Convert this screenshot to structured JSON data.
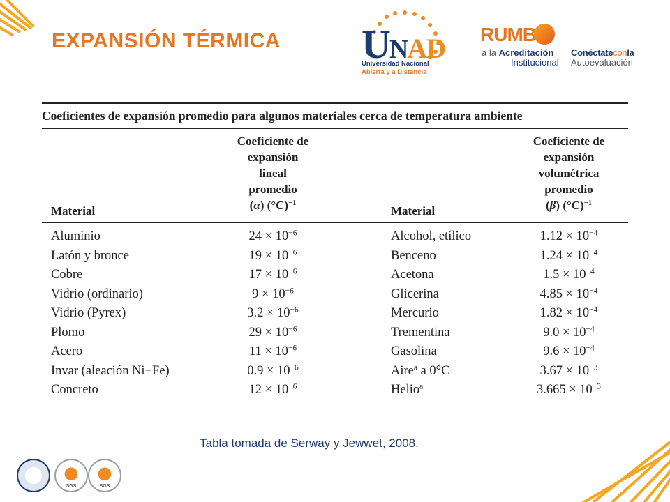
{
  "slide": {
    "title": "EXPANSIÓN TÉRMICA",
    "source_text": "Tabla tomada de Serway y Jewwet, 2008."
  },
  "logos": {
    "unad": {
      "letters_u": "U",
      "letters_n": "N",
      "letters_ad": "AD",
      "line1": "Universidad Nacional",
      "line2": "Abierta y a Distancia"
    },
    "rumbo": {
      "word": "RUMB",
      "line1_prefix": "a la ",
      "line1_bold": "Acreditación",
      "line2": "Institucional",
      "line3_a": "Conéctate",
      "line3_b": "con",
      "line3_c": "la",
      "line4": "Autoevaluación"
    },
    "badges": {
      "b2": "SGS",
      "b3": "SGS"
    },
    "colors": {
      "orange": "#e67524",
      "navy": "#1d3b6e",
      "ray": "#f6a623"
    }
  },
  "table": {
    "caption": "Coeficientes de expansión promedio para algunos materiales cerca de temperatura ambiente",
    "col1_header": "Material",
    "col2_header": {
      "l1": "Coeficiente de",
      "l2": "expansión",
      "l3": "lineal",
      "l4": "promedio",
      "symbol": "α",
      "unit": "(°C)",
      "exp": "−1"
    },
    "col3_header": "Material",
    "col4_header": {
      "l1": "Coeficiente de",
      "l2": "expansión",
      "l3": "volumétrica",
      "l4": "promedio",
      "symbol": "β",
      "unit": "(°C)",
      "exp": "−1"
    },
    "rows": [
      {
        "m1": "Aluminio",
        "a": "24 × 10",
        "ae": "−6",
        "m2": "Alcohol, etílico",
        "m2s": "",
        "m2t": "",
        "b": "1.12 × 10",
        "be": "−4"
      },
      {
        "m1": "Latón y bronce",
        "a": "19 × 10",
        "ae": "−6",
        "m2": "Benceno",
        "m2s": "",
        "m2t": "",
        "b": "1.24 × 10",
        "be": "−4"
      },
      {
        "m1": "Cobre",
        "a": "17 × 10",
        "ae": "−6",
        "m2": "Acetona",
        "m2s": "",
        "m2t": "",
        "b": "1.5 × 10",
        "be": "−4"
      },
      {
        "m1": "Vidrio (ordinario)",
        "a": "9 × 10",
        "ae": "−6",
        "m2": "Glicerina",
        "m2s": "",
        "m2t": "",
        "b": "4.85 × 10",
        "be": "−4"
      },
      {
        "m1": "Vidrio (Pyrex)",
        "a": "3.2 × 10",
        "ae": "−6",
        "m2": "Mercurio",
        "m2s": "",
        "m2t": "",
        "b": "1.82 × 10",
        "be": "−4"
      },
      {
        "m1": "Plomo",
        "a": "29 × 10",
        "ae": "−6",
        "m2": "Trementina",
        "m2s": "",
        "m2t": "",
        "b": "9.0 × 10",
        "be": "−4"
      },
      {
        "m1": "Acero",
        "a": "11 × 10",
        "ae": "−6",
        "m2": "Gasolina",
        "m2s": "",
        "m2t": "",
        "b": "9.6 × 10",
        "be": "−4"
      },
      {
        "m1": "Invar (aleación Ni−Fe)",
        "a": "0.9 × 10",
        "ae": "−6",
        "m2": "Aire",
        "m2s": "a",
        "m2t": " a 0°C",
        "b": "3.67 × 10",
        "be": "−3"
      },
      {
        "m1": "Concreto",
        "a": "12 × 10",
        "ae": "−6",
        "m2": "Helio",
        "m2s": "a",
        "m2t": "",
        "b": "3.665 × 10",
        "be": "−3"
      }
    ]
  }
}
